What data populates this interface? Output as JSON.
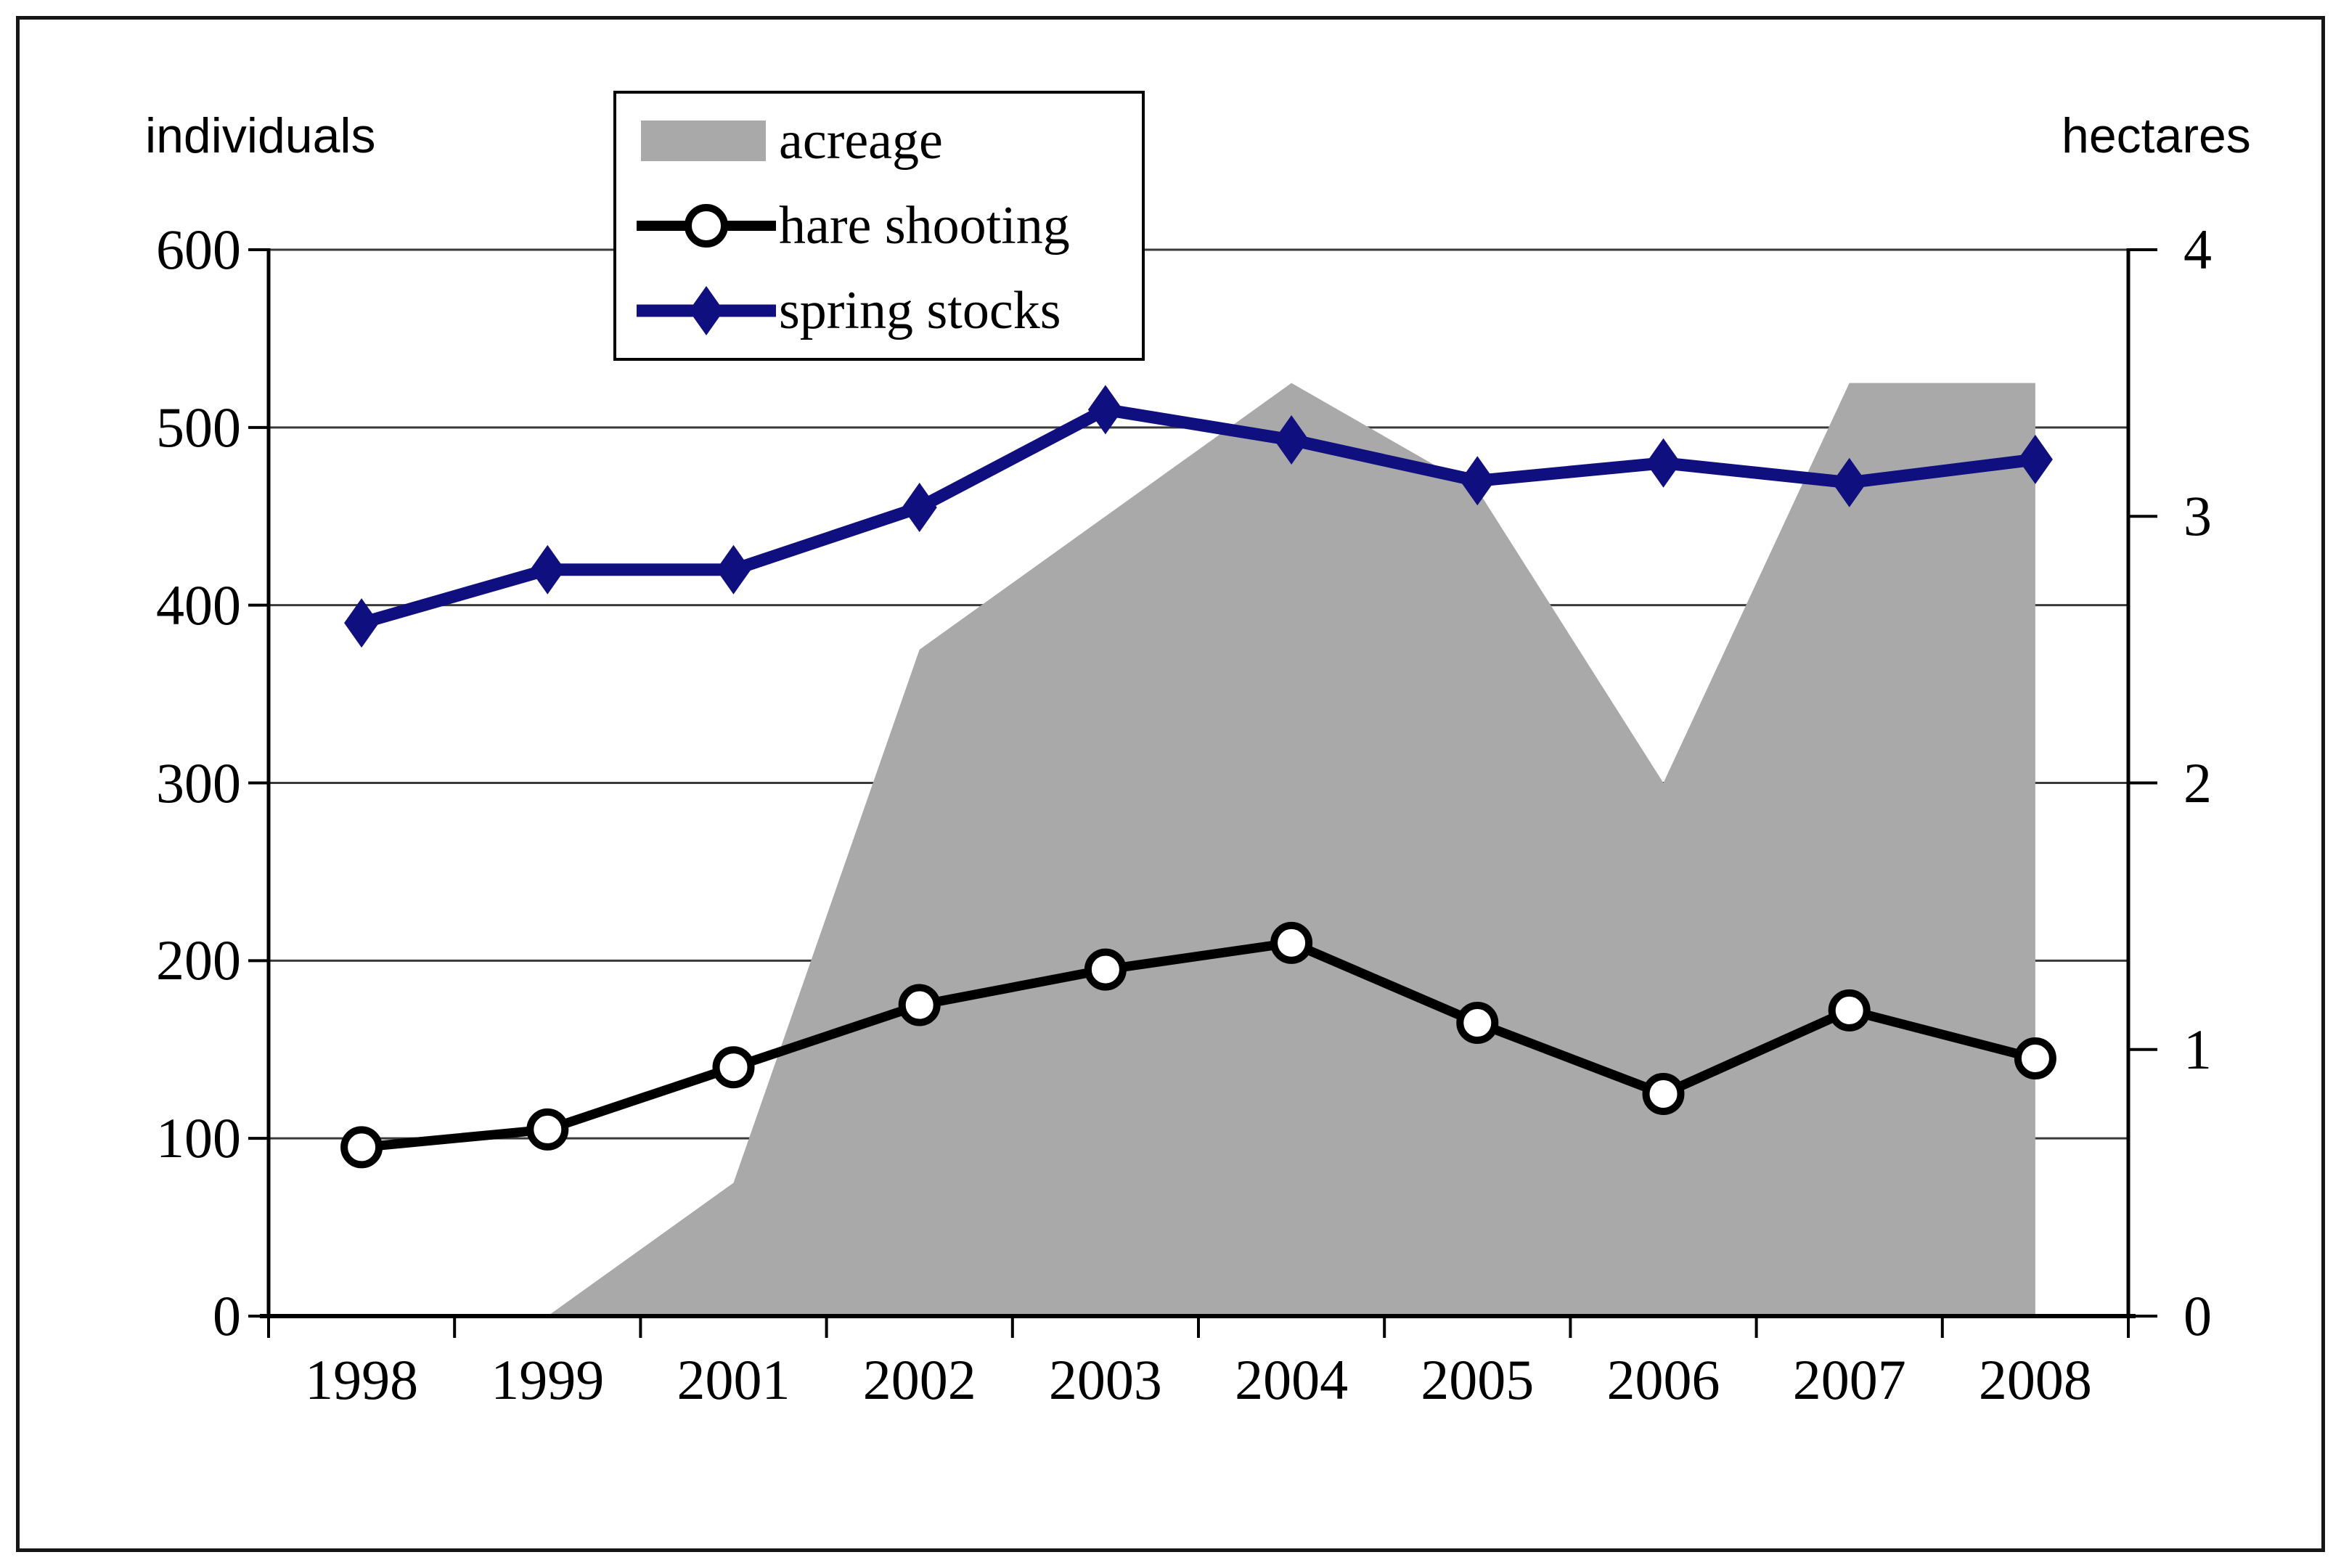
{
  "colors": {
    "background": "#ffffff",
    "area_fill": "#a9a9a9",
    "hare_line": "#000000",
    "hare_marker_fill": "#ffffff",
    "spring_line": "#0f0f80",
    "grid_line": "#3a3a3a",
    "axis_line": "#000000",
    "legend_border": "#000000",
    "outer_border": "#161616"
  },
  "chart_data": {
    "type": "combo (area + 2 line series)",
    "categories": [
      "1998",
      "1999",
      "2001",
      "2002",
      "2003",
      "2004",
      "2005",
      "2006",
      "2007",
      "2008"
    ],
    "series": [
      {
        "name": "acreage",
        "type": "area",
        "axis": "right",
        "unit": "hectares",
        "values": [
          0,
          0,
          0.5,
          2.5,
          3.0,
          3.5,
          3.1,
          2.0,
          3.5,
          3.5
        ]
      },
      {
        "name": "hare shooting",
        "type": "line",
        "axis": "left",
        "marker": "circle",
        "unit": "individuals",
        "values": [
          95,
          105,
          140,
          175,
          195,
          210,
          165,
          125,
          172,
          145
        ]
      },
      {
        "name": "spring stocks",
        "type": "line",
        "axis": "left",
        "marker": "diamond",
        "unit": "individuals",
        "values": [
          390,
          420,
          420,
          455,
          510,
          493,
          470,
          480,
          469,
          482
        ]
      }
    ],
    "left_axis": {
      "title": "individuals",
      "min": 0,
      "max": 600,
      "tick_step": 100,
      "tick_labels": [
        "0",
        "100",
        "200",
        "300",
        "400",
        "500",
        "600"
      ]
    },
    "right_axis": {
      "title": "hectares",
      "min": 0,
      "max": 4,
      "tick_step": 1,
      "tick_labels": [
        "0",
        "1",
        "2",
        "3",
        "4"
      ]
    },
    "grid": true,
    "legend_position": "top-left-inside"
  },
  "legend": {
    "items": [
      {
        "label": "acreage",
        "swatch": "gray-rect"
      },
      {
        "label": "hare shooting",
        "swatch": "black-line-open-circle"
      },
      {
        "label": "spring stocks",
        "swatch": "navy-line-filled-diamond"
      }
    ]
  }
}
